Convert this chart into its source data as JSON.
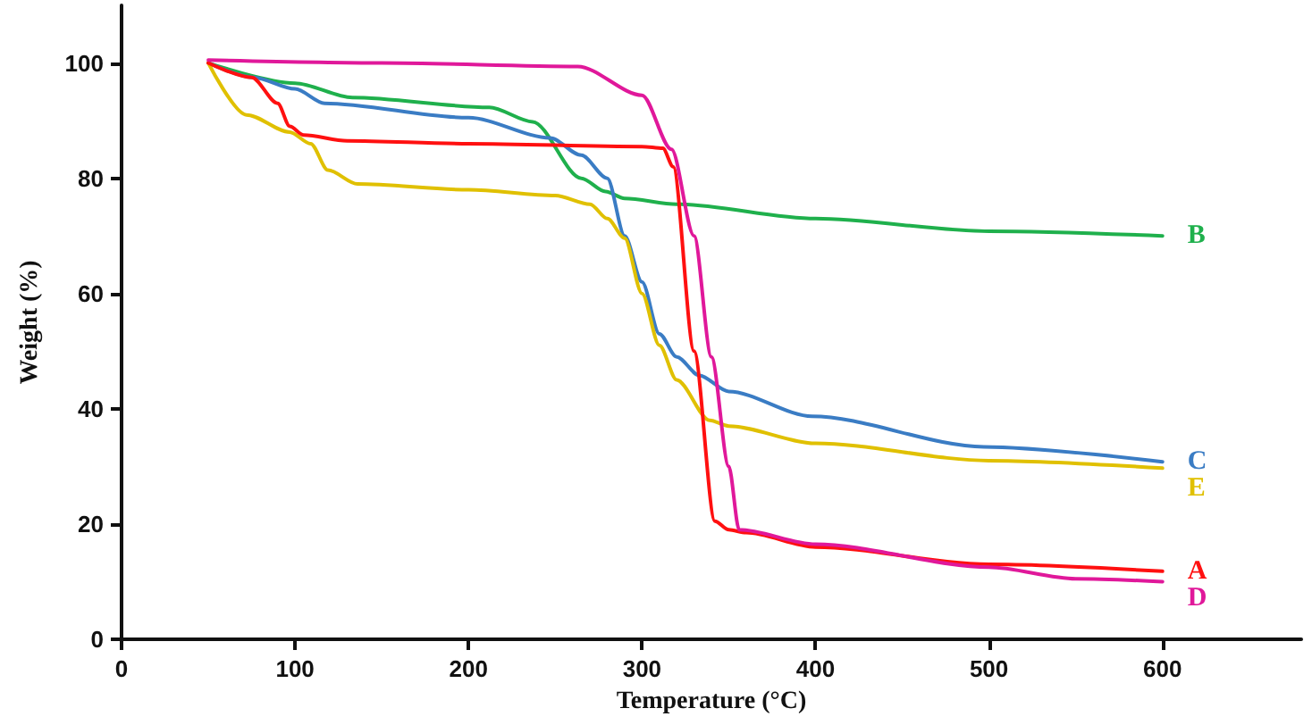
{
  "chart_data": {
    "type": "line",
    "xlabel": "Temperature (°C)",
    "ylabel": "Weight (%)",
    "xlim": [
      0,
      680
    ],
    "xticks": [
      0,
      100,
      200,
      300,
      400,
      500,
      600
    ],
    "ylim": [
      0,
      110
    ],
    "yticks": [
      0,
      20,
      40,
      60,
      80,
      100
    ],
    "grid": false,
    "legend": false,
    "marker": "none",
    "line_style": "solid",
    "series": [
      {
        "name": "B",
        "color": "#1fb04c",
        "x": [
          50,
          100,
          133,
          212,
          237,
          265,
          279,
          290,
          320,
          400,
          500,
          600
        ],
        "values": [
          100,
          96.5,
          94,
          92.3,
          89.8,
          80,
          77.7,
          76.5,
          75.5,
          73,
          70.8,
          70
        ]
      },
      {
        "name": "C",
        "color": "#3a7cc4",
        "x": [
          50,
          76,
          100,
          117,
          200,
          247,
          265,
          280,
          290,
          300,
          310,
          320,
          333,
          350,
          398,
          497,
          600
        ],
        "values": [
          100,
          97.5,
          95.5,
          93,
          90.5,
          87,
          84,
          80,
          70,
          62,
          53,
          49,
          45.8,
          43,
          38.7,
          33.4,
          30.8
        ]
      },
      {
        "name": "E",
        "color": "#e0c000",
        "x": [
          50,
          72,
          97,
          109,
          119,
          136,
          200,
          250,
          270,
          280,
          290,
          300,
          310,
          320,
          339,
          350,
          400,
          500,
          600
        ],
        "values": [
          100,
          91,
          88,
          86,
          81.4,
          79,
          78,
          77,
          75.5,
          73,
          69.6,
          60,
          51,
          45,
          38,
          37,
          34,
          31,
          29.7
        ]
      },
      {
        "name": "A",
        "color": "#ff1010",
        "x": [
          50,
          75,
          90,
          97,
          105,
          130,
          200,
          300,
          312,
          318,
          330,
          342,
          350,
          360,
          400,
          500,
          600
        ],
        "values": [
          100,
          97.5,
          93,
          89,
          87.5,
          86.5,
          86,
          85.5,
          85.2,
          82,
          50,
          20.5,
          19,
          18.5,
          16,
          13,
          11.8
        ]
      },
      {
        "name": "D",
        "color": "#e0189a",
        "x": [
          50,
          150,
          263,
          300,
          317,
          330,
          340,
          350,
          356,
          400,
          500,
          550,
          600
        ],
        "values": [
          100.5,
          100,
          99.4,
          94.4,
          85,
          70,
          49,
          30,
          19,
          16.5,
          12.5,
          10.5,
          10
        ]
      }
    ]
  }
}
